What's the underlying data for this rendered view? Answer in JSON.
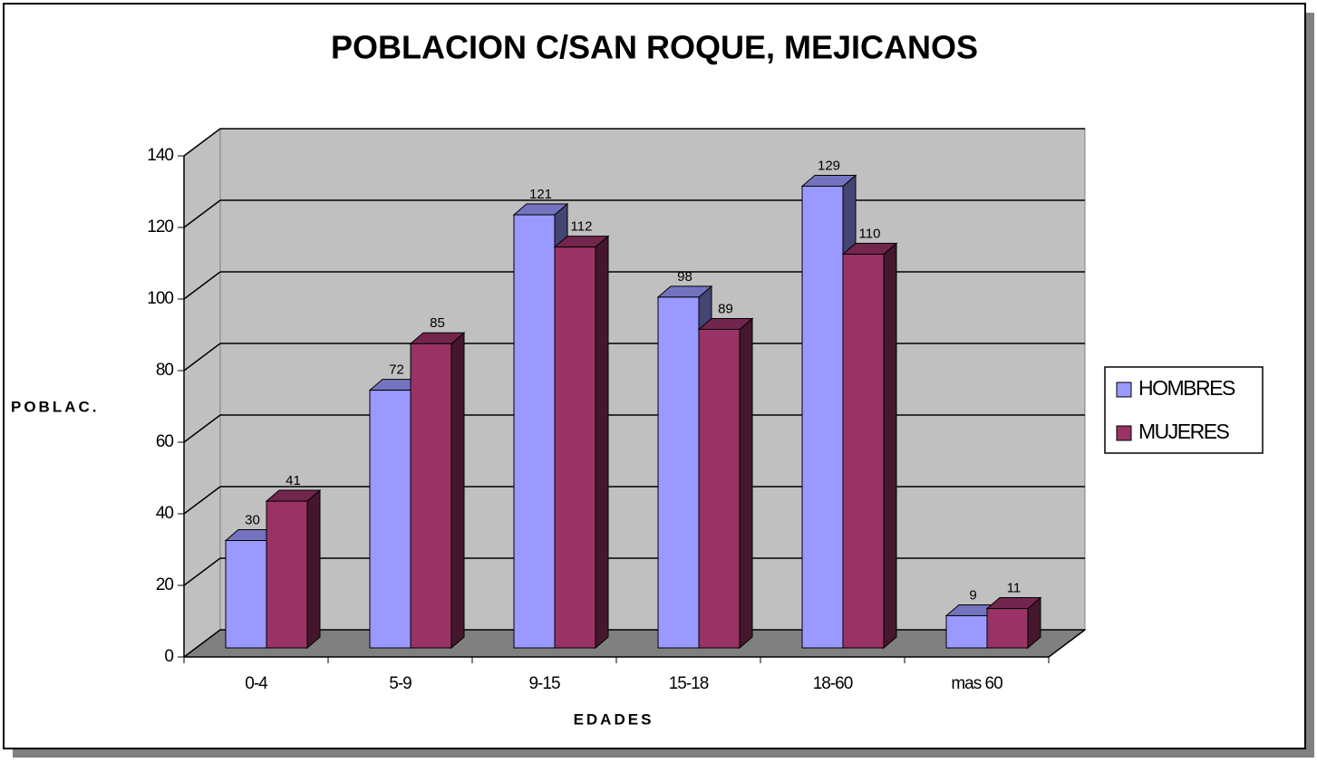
{
  "chart_data": {
    "type": "bar3d",
    "title": "POBLACION C/SAN ROQUE, MEJICANOS",
    "x_label": "EDADES",
    "y_label": "POBLAC.",
    "categories": [
      "0-4",
      "5-9",
      "9-15",
      "15-18",
      "18-60",
      "mas 60"
    ],
    "series": [
      {
        "name": "HOMBRES",
        "color": "#9999ff",
        "values": [
          30,
          72,
          121,
          98,
          129,
          9
        ]
      },
      {
        "name": "MUJERES",
        "color": "#993366",
        "values": [
          41,
          85,
          112,
          89,
          110,
          11
        ]
      }
    ],
    "ylim": [
      0,
      140
    ],
    "yticks": [
      0,
      20,
      40,
      60,
      80,
      100,
      120,
      140
    ],
    "grid": true,
    "legend": "right"
  }
}
